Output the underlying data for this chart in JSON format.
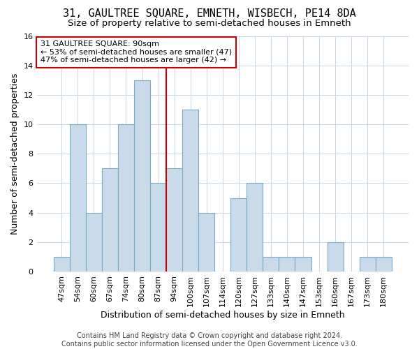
{
  "title": "31, GAULTREE SQUARE, EMNETH, WISBECH, PE14 8DA",
  "subtitle": "Size of property relative to semi-detached houses in Emneth",
  "xlabel": "Distribution of semi-detached houses by size in Emneth",
  "ylabel": "Number of semi-detached properties",
  "categories": [
    "47sqm",
    "54sqm",
    "60sqm",
    "67sqm",
    "74sqm",
    "80sqm",
    "87sqm",
    "94sqm",
    "100sqm",
    "107sqm",
    "114sqm",
    "120sqm",
    "127sqm",
    "133sqm",
    "140sqm",
    "147sqm",
    "153sqm",
    "160sqm",
    "167sqm",
    "173sqm",
    "180sqm"
  ],
  "values": [
    1,
    10,
    4,
    7,
    10,
    13,
    6,
    7,
    11,
    4,
    0,
    5,
    6,
    1,
    1,
    1,
    0,
    2,
    0,
    1,
    1
  ],
  "bar_color": "#c9daea",
  "bar_edge_color": "#7aaac8",
  "vline_x_idx": 7,
  "vline_color": "#cc0000",
  "annotation_text": "31 GAULTREE SQUARE: 90sqm\n← 53% of semi-detached houses are smaller (47)\n47% of semi-detached houses are larger (42) →",
  "annotation_box_color": "#ffffff",
  "annotation_box_edge_color": "#cc0000",
  "ylim": [
    0,
    16
  ],
  "yticks": [
    0,
    2,
    4,
    6,
    8,
    10,
    12,
    14,
    16
  ],
  "footer": "Contains HM Land Registry data © Crown copyright and database right 2024.\nContains public sector information licensed under the Open Government Licence v3.0.",
  "bg_color": "#ffffff",
  "grid_color": "#c8d8e8",
  "title_fontsize": 11,
  "subtitle_fontsize": 9.5,
  "axis_label_fontsize": 9,
  "tick_fontsize": 8,
  "annotation_fontsize": 8,
  "footer_fontsize": 7
}
